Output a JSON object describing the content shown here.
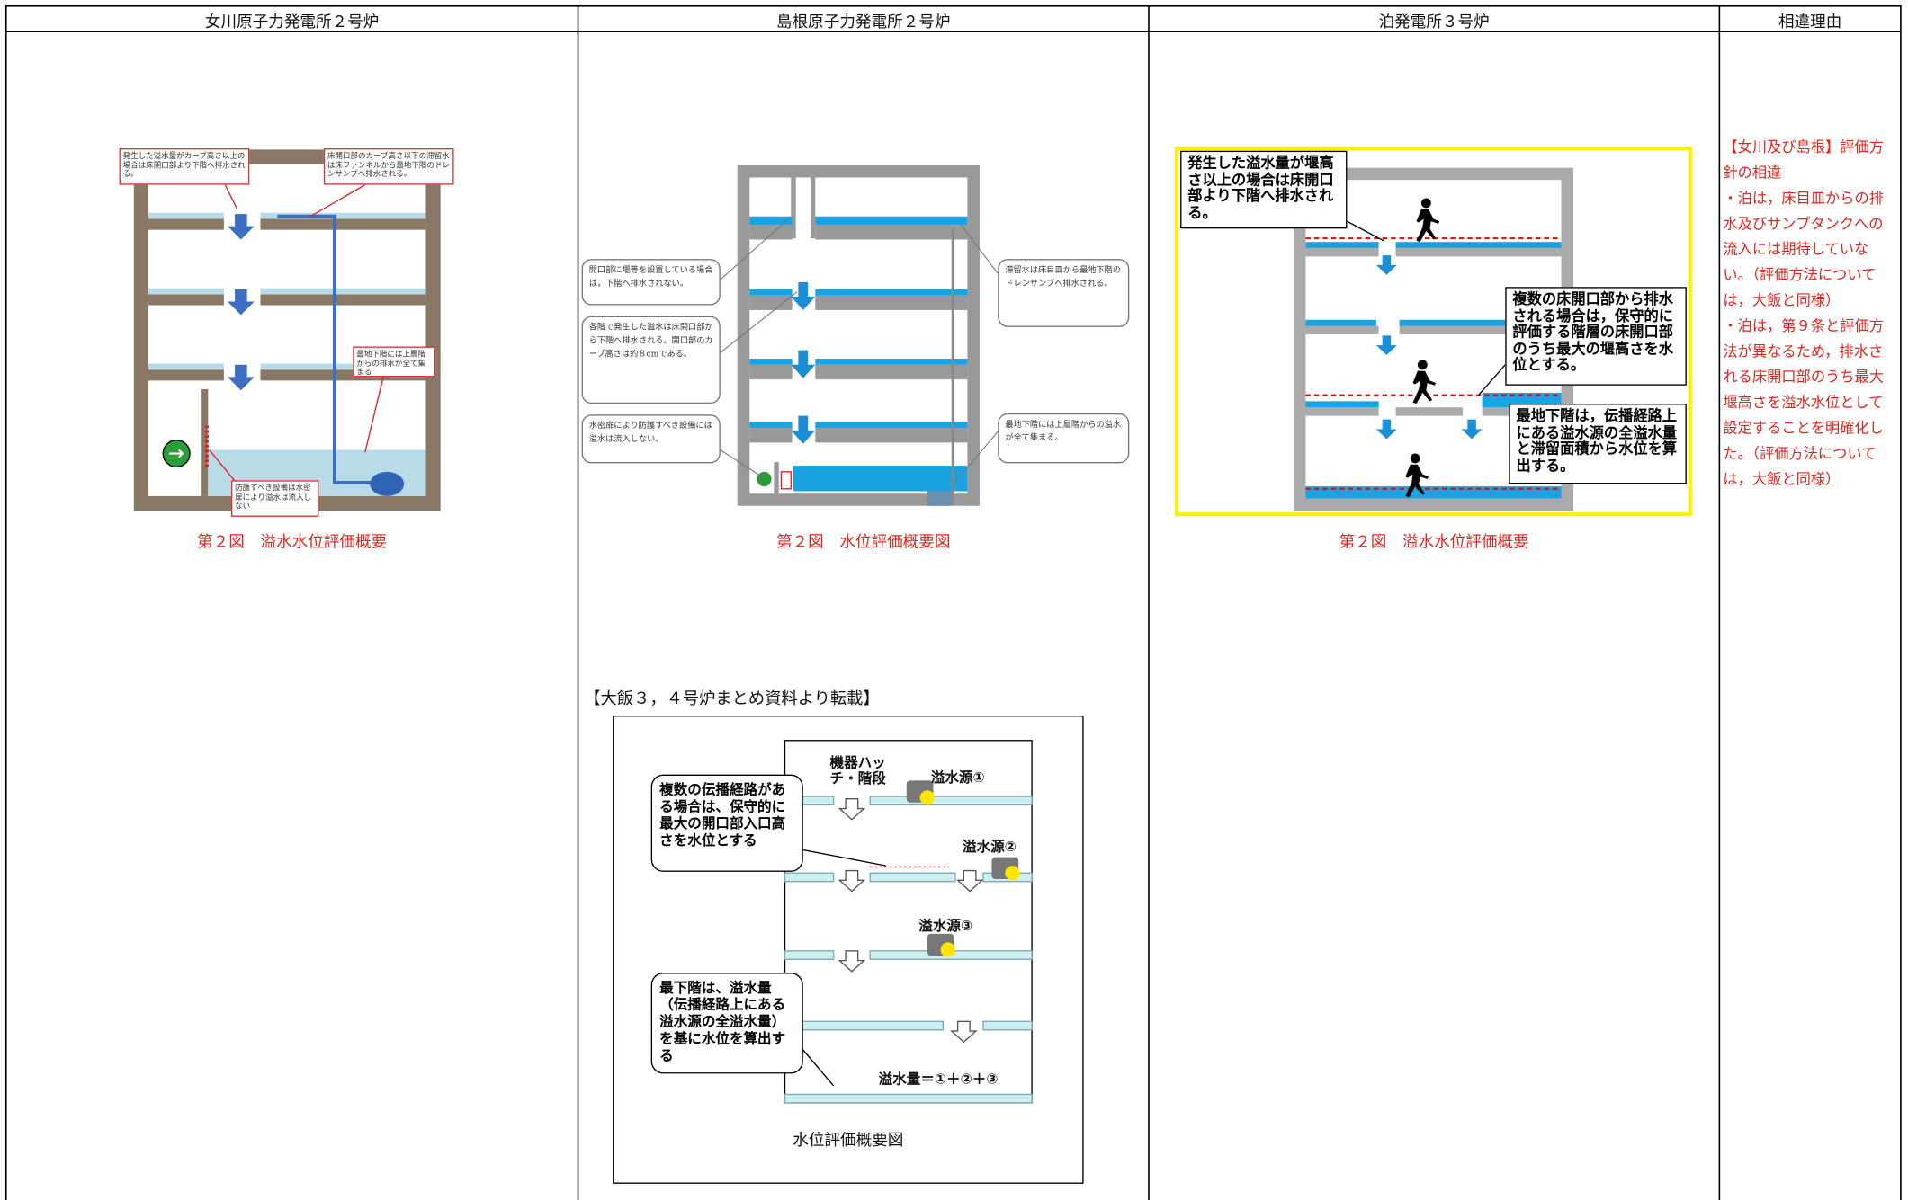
{
  "header": {
    "columns": [
      "女川原子力発電所２号炉",
      "島根原子力発電所２号炉",
      "泊発電所３号炉",
      "相違理由"
    ]
  },
  "onagawa": {
    "callouts": [
      "発生した溢水量がカーブ高さ以上の場合は床開口部より下階へ排水される。",
      "床開口部のカーブ高さ以下の滞留水は床ファンネルから最地下階のドレンサンプへ排水される。",
      "最地下階には上層階からの排水が全て集まる",
      "防護すべき設備は水密扉により溢水は流入しない"
    ],
    "caption": "第２図　溢水水位評価概要"
  },
  "shimane": {
    "callouts": [
      "開口部に堰等を設置している場合は，下階へ排水されない。",
      "各階で発生した溢水は床開口部から下階へ排水される。開口部のカーブ高さは約８cmである。",
      "水密扉により防護すべき設備には溢水は流入しない。",
      "滞留水は床目皿から最地下階のドレンサンプへ排水される。",
      "最地下階には上層階からの溢水が全て集まる。"
    ],
    "caption": "第２図　水位評価概要図",
    "quote_title": "【大飯３，４号炉まとめ資料より転載】",
    "ohi_figure": {
      "labels": [
        "機器ハッチ・階段",
        "溢水源①",
        "溢水源②",
        "溢水源③"
      ],
      "callouts": [
        "複数の伝播経路がある場合は、保守的に最大の開口部入口高さを水位とする",
        "最下階は、溢水量（伝播経路上にある溢水源の全溢水量）を基に水位を算出する"
      ],
      "formula": "溢水量＝①＋②＋③",
      "caption": "水位評価概要図"
    }
  },
  "tomari": {
    "callouts": [
      "発生した溢水量が堰高さ以上の場合は床開口部より下階へ排水される。",
      "複数の床開口部から排水される場合は，保守的に評価する階層の床開口部のうち最大の堰高さを水位とする。",
      "最地下階は，伝播経路上にある溢水源の全溢水量と滞留面積から水位を算出する。"
    ],
    "caption": "第２図　溢水水位評価概要"
  },
  "reasons": {
    "heading": "【女川及び島根】評価方針の相違",
    "items": [
      "・泊は，床目皿からの排水及びサンプタンクへの流入には期待していない。（評価方法については，大飯と同様）",
      "・泊は，第９条と評価方法が異なるため，排水される床開口部のうち最大堰高さを溢水水位として設定することを明確化した。（評価方法については，大飯と同様）"
    ]
  }
}
